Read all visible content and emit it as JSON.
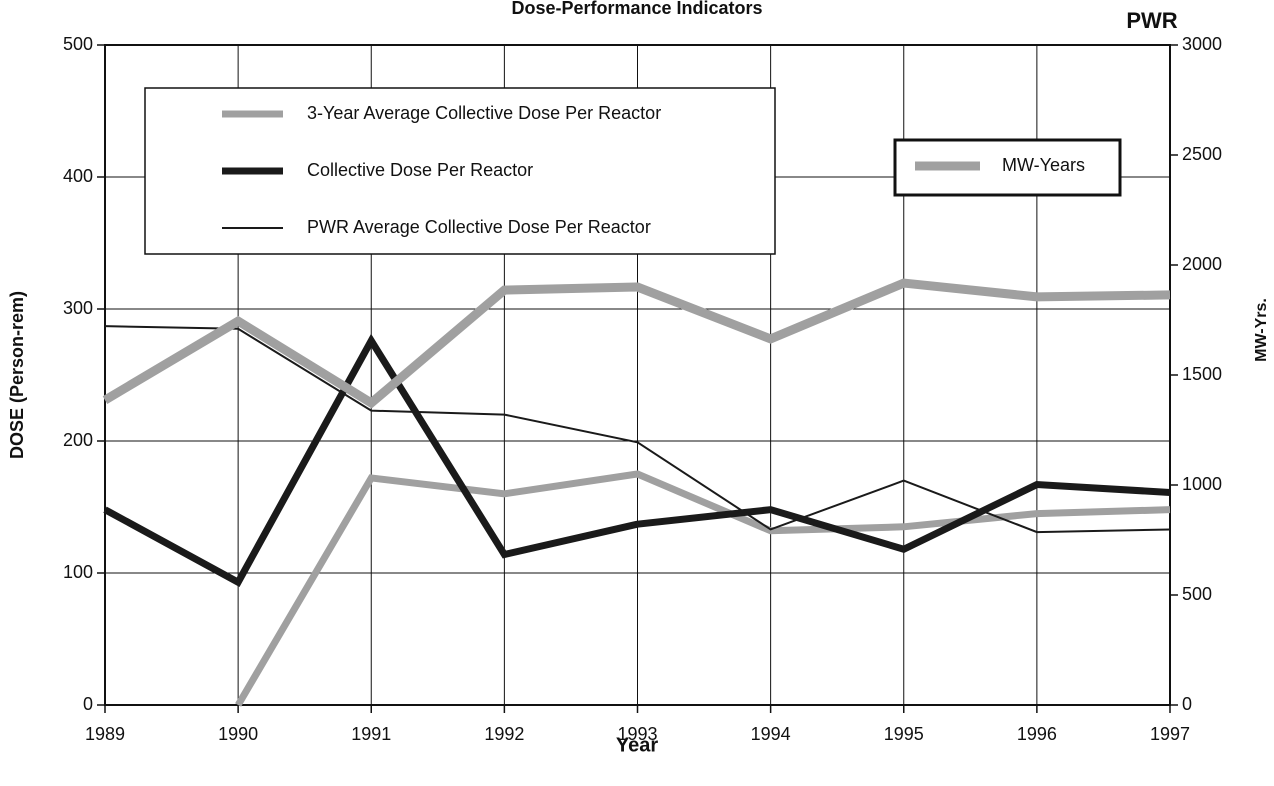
{
  "chart_data": {
    "type": "line",
    "title": "Dose-Performance Indicators",
    "subtitle": "PWR",
    "x_label": "Year",
    "y_label": "DOSE (Person-rem)",
    "y2_label": "MW-Yrs.",
    "x": [
      1989,
      1990,
      1991,
      1992,
      1993,
      1994,
      1995,
      1996,
      1997
    ],
    "xlim": [
      1989,
      1997
    ],
    "xticks": [
      1989,
      1990,
      1991,
      1992,
      1993,
      1994,
      1995,
      1996,
      1997
    ],
    "ylim": [
      0,
      500
    ],
    "yticks": [
      0,
      100,
      200,
      300,
      400,
      500
    ],
    "y2lim": [
      0,
      3000
    ],
    "y2ticks": [
      0,
      500,
      1000,
      1500,
      2000,
      2500,
      3000
    ],
    "grid": true,
    "series": [
      {
        "name": "3-Year Average Collective Dose Per Reactor",
        "color": "#a0a0a0",
        "width": 7,
        "values": [
          null,
          0,
          172,
          160,
          175,
          132,
          135,
          145,
          148
        ]
      },
      {
        "name": "Collective Dose Per Reactor",
        "color": "#1a1a1a",
        "width": 7,
        "values": [
          148,
          93,
          276,
          114,
          137,
          148,
          118,
          167,
          161
        ]
      },
      {
        "name": "PWR Average Collective Dose Per Reactor",
        "color": "#1a1a1a",
        "width": 2,
        "values": [
          287,
          285,
          223,
          220,
          199,
          133,
          170,
          131,
          133
        ]
      },
      {
        "name": "MW-Years",
        "color": "#a0a0a0",
        "width": 9,
        "axis": "y2",
        "values": [
          1386,
          1745,
          1373,
          1886,
          1900,
          1664,
          1918,
          1855,
          1864
        ]
      }
    ]
  }
}
